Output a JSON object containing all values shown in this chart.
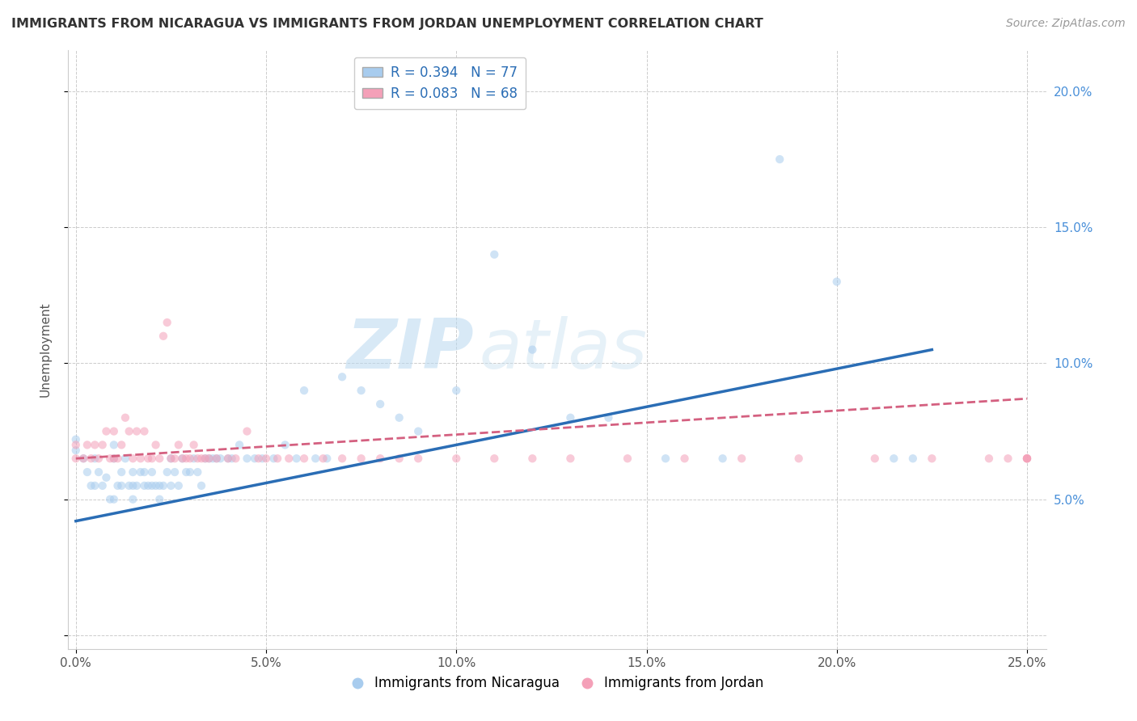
{
  "title": "IMMIGRANTS FROM NICARAGUA VS IMMIGRANTS FROM JORDAN UNEMPLOYMENT CORRELATION CHART",
  "source": "Source: ZipAtlas.com",
  "ylabel": "Unemployment",
  "xlim": [
    -0.002,
    0.255
  ],
  "ylim": [
    -0.005,
    0.215
  ],
  "x_ticks": [
    0.0,
    0.05,
    0.1,
    0.15,
    0.2,
    0.25
  ],
  "x_tick_labels": [
    "0.0%",
    "5.0%",
    "10.0%",
    "15.0%",
    "20.0%",
    "25.0%"
  ],
  "y_ticks": [
    0.0,
    0.05,
    0.1,
    0.15,
    0.2
  ],
  "y_tick_labels": [
    "",
    "5.0%",
    "10.0%",
    "15.0%",
    "20.0%"
  ],
  "legend_entries": [
    {
      "label": "Immigrants from Nicaragua",
      "R": "0.394",
      "N": "77",
      "color": "#a8ccee"
    },
    {
      "label": "Immigrants from Jordan",
      "R": "0.083",
      "N": "68",
      "color": "#f4a0b8"
    }
  ],
  "watermark_zip": "ZIP",
  "watermark_atlas": "atlas",
  "nicaragua_scatter_x": [
    0.0,
    0.0,
    0.002,
    0.003,
    0.004,
    0.005,
    0.005,
    0.006,
    0.007,
    0.008,
    0.009,
    0.01,
    0.01,
    0.01,
    0.011,
    0.012,
    0.012,
    0.013,
    0.014,
    0.015,
    0.015,
    0.015,
    0.016,
    0.017,
    0.018,
    0.018,
    0.019,
    0.02,
    0.02,
    0.021,
    0.022,
    0.022,
    0.023,
    0.024,
    0.025,
    0.025,
    0.026,
    0.027,
    0.028,
    0.029,
    0.03,
    0.031,
    0.032,
    0.033,
    0.034,
    0.035,
    0.036,
    0.037,
    0.038,
    0.04,
    0.041,
    0.043,
    0.045,
    0.047,
    0.049,
    0.052,
    0.055,
    0.058,
    0.06,
    0.063,
    0.066,
    0.07,
    0.075,
    0.08,
    0.085,
    0.09,
    0.1,
    0.11,
    0.12,
    0.13,
    0.14,
    0.155,
    0.17,
    0.185,
    0.2,
    0.215,
    0.22
  ],
  "nicaragua_scatter_y": [
    0.072,
    0.068,
    0.065,
    0.06,
    0.055,
    0.065,
    0.055,
    0.06,
    0.055,
    0.058,
    0.05,
    0.05,
    0.065,
    0.07,
    0.055,
    0.055,
    0.06,
    0.065,
    0.055,
    0.05,
    0.055,
    0.06,
    0.055,
    0.06,
    0.055,
    0.06,
    0.055,
    0.055,
    0.06,
    0.055,
    0.05,
    0.055,
    0.055,
    0.06,
    0.055,
    0.065,
    0.06,
    0.055,
    0.065,
    0.06,
    0.06,
    0.065,
    0.06,
    0.055,
    0.065,
    0.065,
    0.065,
    0.065,
    0.065,
    0.065,
    0.065,
    0.07,
    0.065,
    0.065,
    0.065,
    0.065,
    0.07,
    0.065,
    0.09,
    0.065,
    0.065,
    0.095,
    0.09,
    0.085,
    0.08,
    0.075,
    0.09,
    0.14,
    0.105,
    0.08,
    0.08,
    0.065,
    0.065,
    0.175,
    0.13,
    0.065,
    0.065
  ],
  "jordan_scatter_x": [
    0.0,
    0.0,
    0.002,
    0.003,
    0.004,
    0.005,
    0.006,
    0.007,
    0.008,
    0.009,
    0.01,
    0.01,
    0.011,
    0.012,
    0.013,
    0.014,
    0.015,
    0.016,
    0.017,
    0.018,
    0.019,
    0.02,
    0.021,
    0.022,
    0.023,
    0.024,
    0.025,
    0.026,
    0.027,
    0.028,
    0.029,
    0.03,
    0.031,
    0.032,
    0.033,
    0.034,
    0.035,
    0.037,
    0.04,
    0.042,
    0.045,
    0.048,
    0.05,
    0.053,
    0.056,
    0.06,
    0.065,
    0.07,
    0.075,
    0.08,
    0.085,
    0.09,
    0.1,
    0.11,
    0.12,
    0.13,
    0.145,
    0.16,
    0.175,
    0.19,
    0.21,
    0.225,
    0.24,
    0.245,
    0.25,
    0.25,
    0.25,
    0.25
  ],
  "jordan_scatter_y": [
    0.065,
    0.07,
    0.065,
    0.07,
    0.065,
    0.07,
    0.065,
    0.07,
    0.075,
    0.065,
    0.065,
    0.075,
    0.065,
    0.07,
    0.08,
    0.075,
    0.065,
    0.075,
    0.065,
    0.075,
    0.065,
    0.065,
    0.07,
    0.065,
    0.11,
    0.115,
    0.065,
    0.065,
    0.07,
    0.065,
    0.065,
    0.065,
    0.07,
    0.065,
    0.065,
    0.065,
    0.065,
    0.065,
    0.065,
    0.065,
    0.075,
    0.065,
    0.065,
    0.065,
    0.065,
    0.065,
    0.065,
    0.065,
    0.065,
    0.065,
    0.065,
    0.065,
    0.065,
    0.065,
    0.065,
    0.065,
    0.065,
    0.065,
    0.065,
    0.065,
    0.065,
    0.065,
    0.065,
    0.065,
    0.065,
    0.065,
    0.065,
    0.065
  ],
  "nic_trend_x": [
    0.0,
    0.225
  ],
  "nic_trend_y": [
    0.042,
    0.105
  ],
  "jor_trend_x": [
    0.0,
    0.25
  ],
  "jor_trend_y": [
    0.065,
    0.087
  ],
  "bg_color": "#ffffff",
  "scatter_alpha": 0.55,
  "scatter_size": 55,
  "grid_color": "#cccccc",
  "grid_linestyle": "--",
  "grid_linewidth": 0.7,
  "nic_line_color": "#2a6db5",
  "jor_line_color": "#d46080"
}
